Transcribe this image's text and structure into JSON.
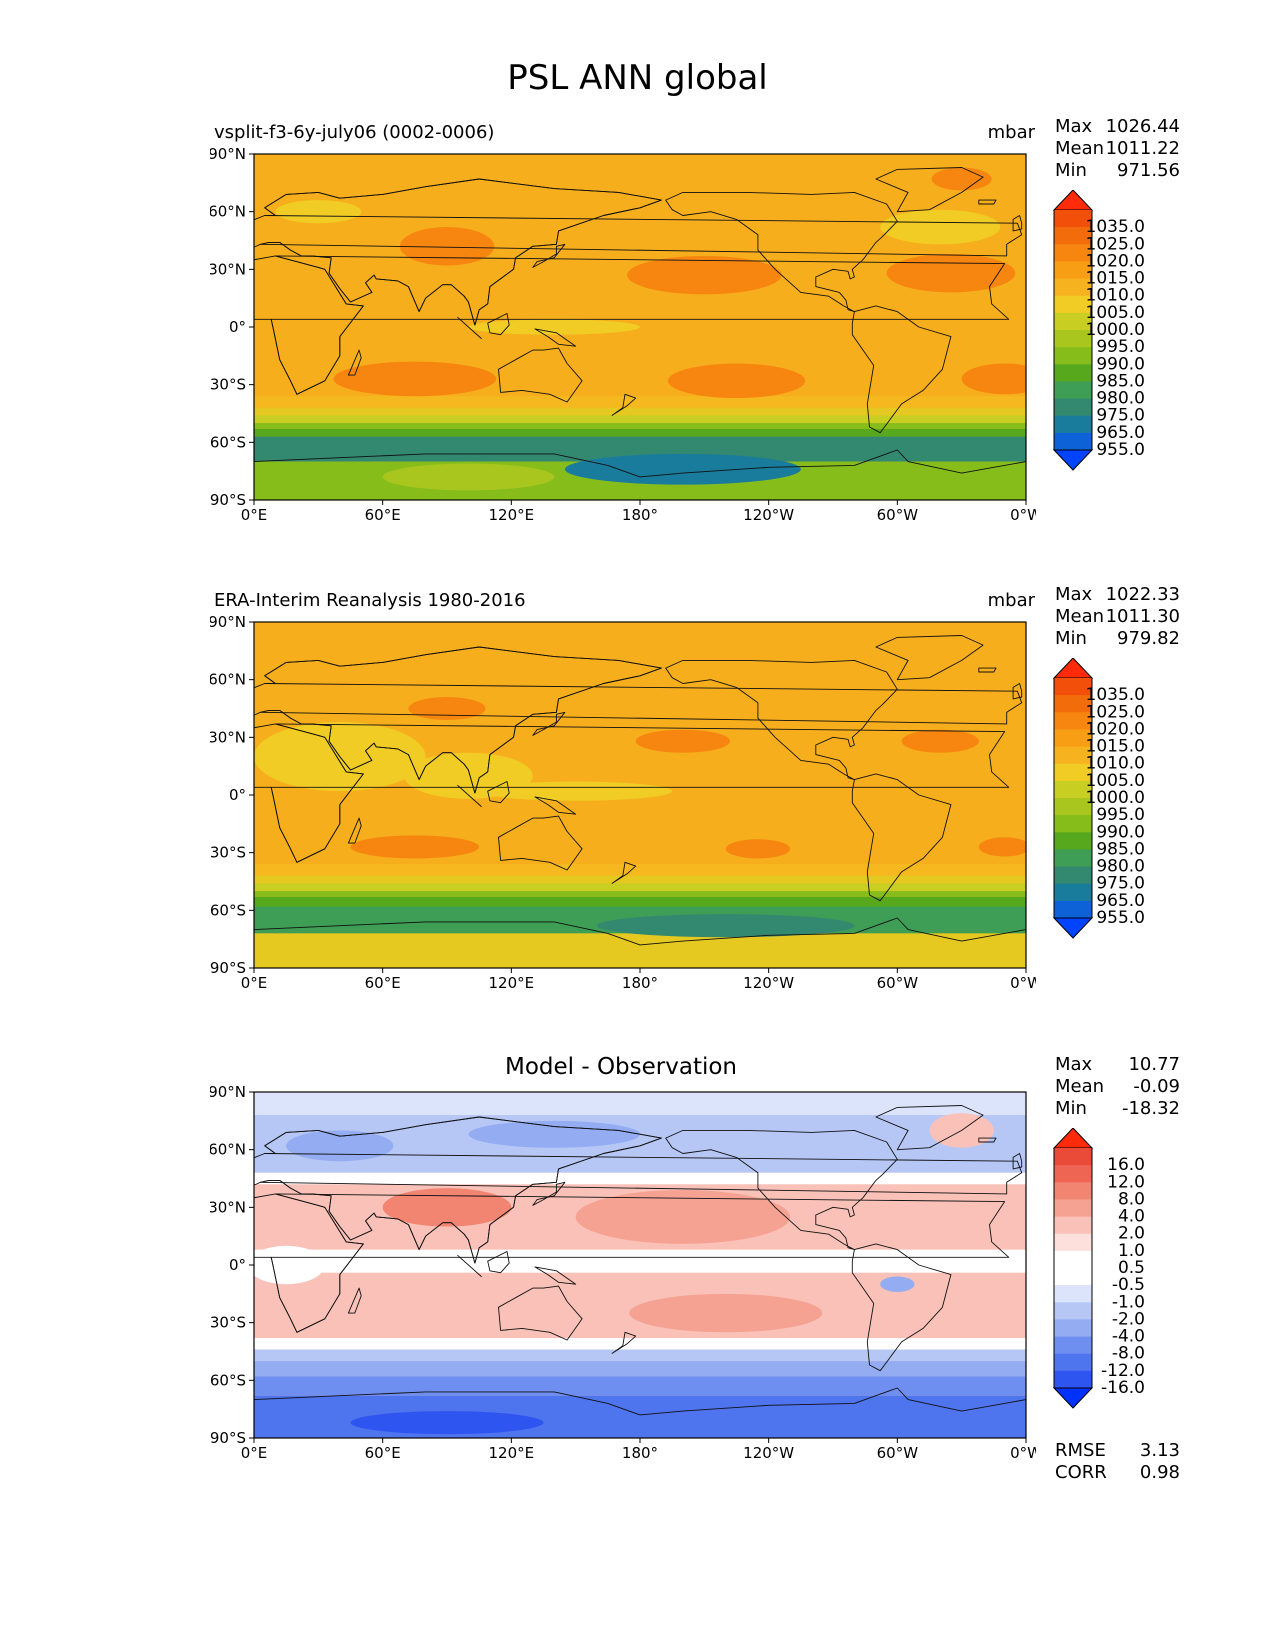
{
  "title": "PSL ANN global",
  "colors": {
    "psl": [
      "#0044ff",
      "#0d62d8",
      "#1a7c9c",
      "#338870",
      "#3f9e55",
      "#58a81e",
      "#86bd1b",
      "#a8c61e",
      "#c8cf22",
      "#f0cc24",
      "#f7b31f",
      "#f79e15",
      "#f78610",
      "#f36c0b",
      "#f24f0a",
      "#ff2b0a"
    ],
    "diff": [
      "#0032ff",
      "#2f55f0",
      "#4e74ee",
      "#6f8ff0",
      "#93acf2",
      "#b6c7f6",
      "#dce4fb",
      "#ffffff",
      "#ffffff",
      "#fde0dc",
      "#f9c1b8",
      "#f5a292",
      "#f28472",
      "#ee6553",
      "#ea4a38",
      "#ff2a0a"
    ]
  },
  "panels": [
    {
      "id": "test",
      "left_title": "vsplit-f3-6y-july06 (0002-0006)",
      "center_title": "",
      "units": "mbar",
      "stats": [
        {
          "label": "Max",
          "value": "1026.44"
        },
        {
          "label": "Mean",
          "value": "1011.22"
        },
        {
          "label": "Min",
          "value": "971.56"
        }
      ],
      "colorbar": {
        "scheme": "psl",
        "labels": [
          "1035.0",
          "1025.0",
          "1020.0",
          "1015.0",
          "1010.0",
          "1005.0",
          "1000.0",
          "995.0",
          "990.0",
          "985.0",
          "980.0",
          "975.0",
          "965.0",
          "955.0"
        ]
      },
      "fields": {
        "background": "#f7ae1c",
        "bands": [
          {
            "lat_from": -36,
            "lat_to": -42,
            "color": "#f5b81e"
          },
          {
            "lat_from": -42,
            "lat_to": -46,
            "color": "#e6c920"
          },
          {
            "lat_from": -46,
            "lat_to": -50,
            "color": "#c8cf22"
          },
          {
            "lat_from": -50,
            "lat_to": -53,
            "color": "#86bd1b"
          },
          {
            "lat_from": -53,
            "lat_to": -57,
            "color": "#58a81e"
          },
          {
            "lat_from": -57,
            "lat_to": -70,
            "color": "#338870"
          },
          {
            "lat_from": -70,
            "lat_to": -90,
            "color": "#86bd1b"
          }
        ],
        "blobs": [
          {
            "lon": 200,
            "lat": -74,
            "rlon": 55,
            "rlat": 8,
            "color": "#1a7c9c"
          },
          {
            "lon": 100,
            "lat": -78,
            "rlon": 40,
            "rlat": 7,
            "color": "#a8c61e"
          },
          {
            "lon": 210,
            "lat": 27,
            "rlon": 36,
            "rlat": 10,
            "color": "#f78610"
          },
          {
            "lon": 325,
            "lat": 28,
            "rlon": 30,
            "rlat": 10,
            "color": "#f78610"
          },
          {
            "lon": 225,
            "lat": -28,
            "rlon": 32,
            "rlat": 9,
            "color": "#f78610"
          },
          {
            "lon": 350,
            "lat": -27,
            "rlon": 20,
            "rlat": 8,
            "color": "#f78610"
          },
          {
            "lon": 75,
            "lat": -27,
            "rlon": 38,
            "rlat": 9,
            "color": "#f78610"
          },
          {
            "lon": 90,
            "lat": 42,
            "rlon": 22,
            "rlat": 10,
            "color": "#f78610"
          },
          {
            "lon": 320,
            "lat": 52,
            "rlon": 28,
            "rlat": 9,
            "color": "#f0cc24"
          },
          {
            "lon": 30,
            "lat": 60,
            "rlon": 20,
            "rlat": 6,
            "color": "#f0cc24"
          },
          {
            "lon": 140,
            "lat": 0,
            "rlon": 40,
            "rlat": 4,
            "color": "#f0cc24"
          },
          {
            "lon": 330,
            "lat": 77,
            "rlon": 14,
            "rlat": 6,
            "color": "#f78610"
          }
        ]
      }
    },
    {
      "id": "ref",
      "left_title": "ERA-Interim Reanalysis 1980-2016",
      "center_title": "",
      "units": "mbar",
      "stats": [
        {
          "label": "Max",
          "value": "1022.33"
        },
        {
          "label": "Mean",
          "value": "1011.30"
        },
        {
          "label": "Min",
          "value": "979.82"
        }
      ],
      "colorbar": {
        "scheme": "psl",
        "labels": [
          "1035.0",
          "1025.0",
          "1020.0",
          "1015.0",
          "1010.0",
          "1005.0",
          "1000.0",
          "995.0",
          "990.0",
          "985.0",
          "980.0",
          "975.0",
          "965.0",
          "955.0"
        ]
      },
      "fields": {
        "background": "#f7ae1c",
        "bands": [
          {
            "lat_from": -36,
            "lat_to": -42,
            "color": "#f5b81e"
          },
          {
            "lat_from": -42,
            "lat_to": -46,
            "color": "#e6c920"
          },
          {
            "lat_from": -46,
            "lat_to": -50,
            "color": "#c8cf22"
          },
          {
            "lat_from": -50,
            "lat_to": -53,
            "color": "#86bd1b"
          },
          {
            "lat_from": -53,
            "lat_to": -58,
            "color": "#58a81e"
          },
          {
            "lat_from": -58,
            "lat_to": -72,
            "color": "#3f9e55"
          },
          {
            "lat_from": -72,
            "lat_to": -90,
            "color": "#e6c920"
          }
        ],
        "blobs": [
          {
            "lon": 220,
            "lat": -68,
            "rlon": 60,
            "rlat": 6,
            "color": "#338870"
          },
          {
            "lon": 40,
            "lat": 20,
            "rlon": 40,
            "rlat": 18,
            "color": "#f0cc24"
          },
          {
            "lon": 100,
            "lat": 10,
            "rlon": 30,
            "rlat": 12,
            "color": "#f0cc24"
          },
          {
            "lon": 150,
            "lat": 2,
            "rlon": 45,
            "rlat": 5,
            "color": "#f0cc24"
          },
          {
            "lon": 200,
            "lat": 28,
            "rlon": 22,
            "rlat": 6,
            "color": "#f78610"
          },
          {
            "lon": 320,
            "lat": 28,
            "rlon": 18,
            "rlat": 6,
            "color": "#f78610"
          },
          {
            "lon": 235,
            "lat": -28,
            "rlon": 15,
            "rlat": 5,
            "color": "#f78610"
          },
          {
            "lon": 75,
            "lat": -27,
            "rlon": 30,
            "rlat": 6,
            "color": "#f78610"
          },
          {
            "lon": 350,
            "lat": -27,
            "rlon": 12,
            "rlat": 5,
            "color": "#f78610"
          },
          {
            "lon": 90,
            "lat": 45,
            "rlon": 18,
            "rlat": 6,
            "color": "#f78610"
          }
        ]
      }
    },
    {
      "id": "diff",
      "left_title": "",
      "center_title": "Model - Observation",
      "units": "",
      "stats": [
        {
          "label": "Max",
          "value": "10.77"
        },
        {
          "label": "Mean",
          "value": "-0.09"
        },
        {
          "label": "Min",
          "value": "-18.32"
        }
      ],
      "colorbar": {
        "scheme": "diff",
        "labels": [
          "16.0",
          "12.0",
          "8.0",
          "4.0",
          "2.0",
          "1.0",
          "0.5",
          "-0.5",
          "-1.0",
          "-2.0",
          "-4.0",
          "-8.0",
          "-12.0",
          "-16.0"
        ]
      },
      "extra_stats": [
        {
          "label": "RMSE",
          "value": "3.13"
        },
        {
          "label": "CORR",
          "value": "0.98"
        }
      ],
      "fields": {
        "background": "#f9c1b8",
        "bands": [
          {
            "lat_from": 90,
            "lat_to": 78,
            "color": "#dce4fb"
          },
          {
            "lat_from": 78,
            "lat_to": 48,
            "color": "#b6c7f6"
          },
          {
            "lat_from": 48,
            "lat_to": 42,
            "color": "#ffffff"
          },
          {
            "lat_from": 8,
            "lat_to": -4,
            "color": "#ffffff"
          },
          {
            "lat_from": -38,
            "lat_to": -44,
            "color": "#ffffff"
          },
          {
            "lat_from": -44,
            "lat_to": -50,
            "color": "#b6c7f6"
          },
          {
            "lat_from": -50,
            "lat_to": -58,
            "color": "#93acf2"
          },
          {
            "lat_from": -58,
            "lat_to": -68,
            "color": "#6f8ff0"
          },
          {
            "lat_from": -68,
            "lat_to": -90,
            "color": "#4e74ee"
          }
        ],
        "blobs": [
          {
            "lon": 90,
            "lat": -82,
            "rlon": 45,
            "rlat": 6,
            "color": "#2f55f0"
          },
          {
            "lon": 200,
            "lat": 25,
            "rlon": 50,
            "rlat": 14,
            "color": "#f5a292"
          },
          {
            "lon": 220,
            "lat": -25,
            "rlon": 45,
            "rlat": 10,
            "color": "#f5a292"
          },
          {
            "lon": 90,
            "lat": 30,
            "rlon": 30,
            "rlat": 10,
            "color": "#f28472"
          },
          {
            "lon": 330,
            "lat": 70,
            "rlon": 15,
            "rlat": 9,
            "color": "#f9c1b8"
          },
          {
            "lon": 40,
            "lat": 62,
            "rlon": 25,
            "rlat": 8,
            "color": "#93acf2"
          },
          {
            "lon": 140,
            "lat": 68,
            "rlon": 40,
            "rlat": 7,
            "color": "#93acf2"
          },
          {
            "lon": 300,
            "lat": -10,
            "rlon": 8,
            "rlat": 4,
            "color": "#93acf2"
          },
          {
            "lon": 15,
            "lat": 0,
            "rlon": 18,
            "rlat": 10,
            "color": "#ffffff"
          }
        ]
      }
    }
  ],
  "x_ticks": [
    "0°E",
    "60°E",
    "120°E",
    "180°",
    "120°W",
    "60°W",
    "0°W"
  ],
  "y_ticks": [
    "90°N",
    "60°N",
    "30°N",
    "0°",
    "30°S",
    "60°S",
    "90°S"
  ]
}
